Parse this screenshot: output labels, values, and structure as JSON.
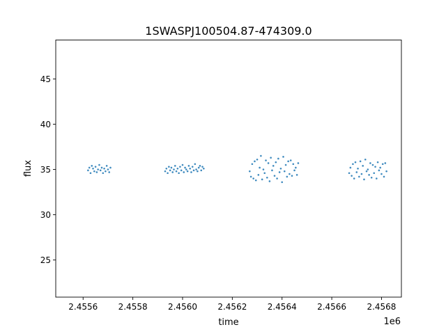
{
  "chart_data": {
    "type": "scatter",
    "title": "1SWASPJ100504.87-474309.0",
    "xlabel": "time",
    "ylabel": "flux",
    "x_offset_label": "1e6",
    "xlim": [
      2.45549,
      2.45688
    ],
    "ylim": [
      20.9,
      49.3
    ],
    "x_ticks": [
      2.4556,
      2.4558,
      2.456,
      2.4562,
      2.4564,
      2.4566,
      2.4568
    ],
    "x_tick_labels": [
      "2.4556",
      "2.4558",
      "2.4560",
      "2.4562",
      "2.4564",
      "2.4566",
      "2.4568"
    ],
    "y_ticks": [
      25,
      30,
      35,
      40,
      45
    ],
    "y_tick_labels": [
      "25",
      "30",
      "35",
      "40",
      "45"
    ],
    "grid": false,
    "legend": "none",
    "point_color": "#1f77b4",
    "series": [
      {
        "x": [
          2.45562,
          2.455625,
          2.45563,
          2.455635,
          2.45564,
          2.455645,
          2.45565,
          2.455655,
          2.45566,
          2.455665,
          2.45567,
          2.455675,
          2.45568,
          2.455685,
          2.45569,
          2.455695,
          2.4557,
          2.455705,
          2.45571,
          2.45593,
          2.455935,
          2.45594,
          2.455945,
          2.45595,
          2.455955,
          2.45596,
          2.455965,
          2.45597,
          2.455975,
          2.45598,
          2.455985,
          2.45599,
          2.455995,
          2.456,
          2.456005,
          2.45601,
          2.456015,
          2.45602,
          2.456025,
          2.45603,
          2.456035,
          2.45604,
          2.456045,
          2.45605,
          2.456055,
          2.45606,
          2.456065,
          2.45607,
          2.456075,
          2.45608,
          2.456085,
          2.45627,
          2.456275,
          2.45628,
          2.456285,
          2.45629,
          2.456295,
          2.4563,
          2.456305,
          2.45631,
          2.456315,
          2.45632,
          2.456325,
          2.45633,
          2.456335,
          2.45634,
          2.456345,
          2.45635,
          2.456355,
          2.45636,
          2.456365,
          2.45637,
          2.456375,
          2.45638,
          2.456385,
          2.45639,
          2.456395,
          2.4564,
          2.456405,
          2.45641,
          2.456415,
          2.45642,
          2.456425,
          2.45643,
          2.456435,
          2.45644,
          2.456445,
          2.45645,
          2.456455,
          2.45646,
          2.456465,
          2.45667,
          2.456675,
          2.45668,
          2.456685,
          2.45669,
          2.456695,
          2.4567,
          2.456705,
          2.45671,
          2.456715,
          2.45672,
          2.456725,
          2.45673,
          2.456735,
          2.45674,
          2.456745,
          2.45675,
          2.456755,
          2.45676,
          2.456765,
          2.45677,
          2.456775,
          2.45678,
          2.456785,
          2.45679,
          2.456795,
          2.4568,
          2.456805,
          2.45681,
          2.456815,
          2.45682
        ],
        "y": [
          34.9,
          35.2,
          34.6,
          35.4,
          35.1,
          34.8,
          35.3,
          34.7,
          35.0,
          35.5,
          34.9,
          35.2,
          34.6,
          35.1,
          34.8,
          35.4,
          35.0,
          34.7,
          35.2,
          34.8,
          35.1,
          34.6,
          35.3,
          34.9,
          35.2,
          34.7,
          35.0,
          35.4,
          34.8,
          35.1,
          34.6,
          35.3,
          34.9,
          35.5,
          34.7,
          35.2,
          35.0,
          34.8,
          35.4,
          35.1,
          34.7,
          35.3,
          34.9,
          35.6,
          35.0,
          34.8,
          35.2,
          35.4,
          34.9,
          35.3,
          35.1,
          34.8,
          34.2,
          35.6,
          34.0,
          35.9,
          33.8,
          36.1,
          34.4,
          35.2,
          36.5,
          33.9,
          35.0,
          34.6,
          36.0,
          34.1,
          35.7,
          33.7,
          36.3,
          34.9,
          35.4,
          34.3,
          35.8,
          34.0,
          36.2,
          34.7,
          35.1,
          33.6,
          36.4,
          34.8,
          35.5,
          34.2,
          35.9,
          34.5,
          36.0,
          34.3,
          35.6,
          34.9,
          35.2,
          34.4,
          35.7,
          34.6,
          35.2,
          34.3,
          35.6,
          34.0,
          35.8,
          34.7,
          35.1,
          34.2,
          35.9,
          34.5,
          35.4,
          33.9,
          36.1,
          34.8,
          35.0,
          34.4,
          35.7,
          34.1,
          35.5,
          34.6,
          35.3,
          34.0,
          35.8,
          34.9,
          35.2,
          34.5,
          35.6,
          34.2,
          35.7,
          34.8
        ]
      }
    ]
  }
}
